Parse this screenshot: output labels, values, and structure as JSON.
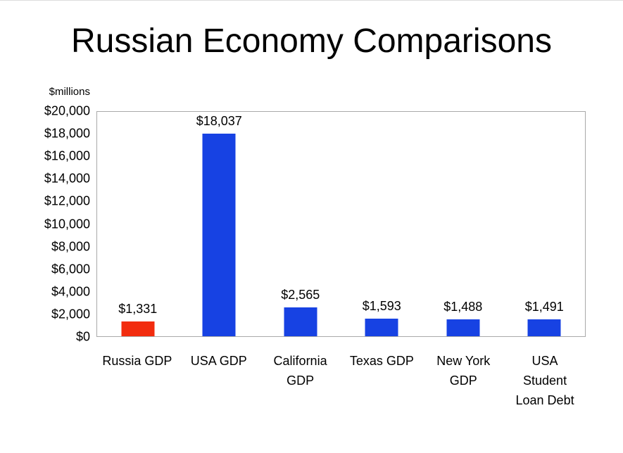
{
  "title": "Russian Economy Comparisons",
  "chart_data": {
    "type": "bar",
    "title": "Russian Economy Comparisons",
    "units_label": "$millions",
    "categories": [
      "Russia GDP",
      "USA GDP",
      "California GDP",
      "Texas GDP",
      "New York GDP",
      "USA Student Loan Debt"
    ],
    "category_display": [
      "Russia GDP",
      "USA GDP",
      "California\nGDP",
      "Texas GDP",
      "New York\nGDP",
      "USA\nStudent\nLoan Debt"
    ],
    "values": [
      1331,
      18037,
      2565,
      1593,
      1488,
      1491
    ],
    "value_labels": [
      "$1,331",
      "$18,037",
      "$2,565",
      "$1,593",
      "$1,488",
      "$1,491"
    ],
    "bar_colors": [
      "#f22c0e",
      "#1742e3",
      "#1742e3",
      "#1742e3",
      "#1742e3",
      "#1742e3"
    ],
    "ylim": [
      0,
      20000
    ],
    "ytick_step": 2000,
    "ytick_labels": [
      "$0",
      "$2,000",
      "$4,000",
      "$6,000",
      "$8,000",
      "$10,000",
      "$12,000",
      "$14,000",
      "$16,000",
      "$18,000",
      "$20,000"
    ],
    "grid": false,
    "legend": "none",
    "xlabel": "",
    "ylabel": "$millions"
  }
}
